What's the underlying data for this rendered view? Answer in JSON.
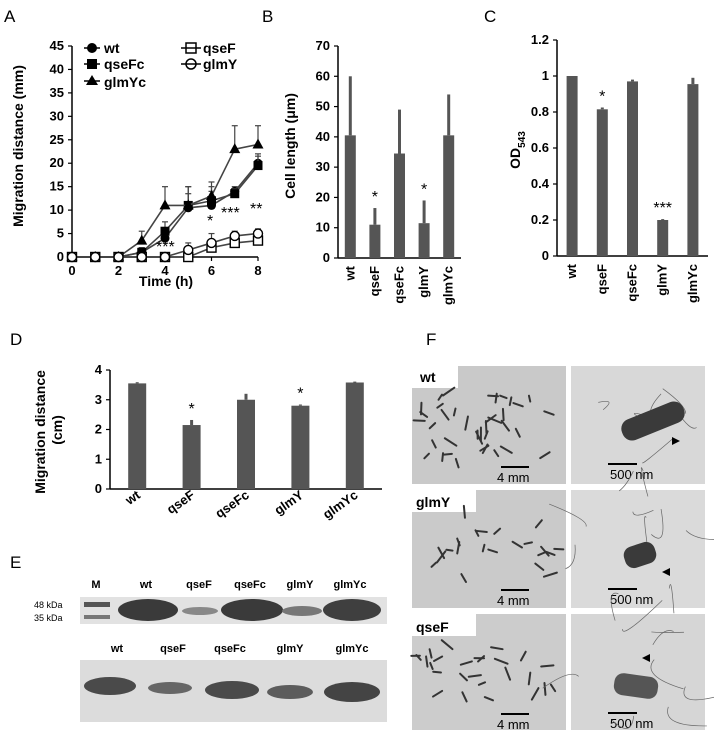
{
  "panel_labels": [
    "A",
    "B",
    "C",
    "D",
    "E",
    "F"
  ],
  "chart_data": [
    {
      "panel": "A",
      "type": "line",
      "xlabel": "Time (h)",
      "ylabel": "Migration distance (mm)",
      "xlim": [
        0,
        8
      ],
      "ylim": [
        0,
        45
      ],
      "xticks": [
        "0",
        "2",
        "4",
        "6",
        "8"
      ],
      "yticks": [
        "0",
        "5",
        "10",
        "15",
        "20",
        "25",
        "30",
        "35",
        "40",
        "45"
      ],
      "x": [
        0,
        1,
        2,
        3,
        4,
        5,
        6,
        7,
        8
      ],
      "series": [
        {
          "name": "wt",
          "marker": "filled-circle",
          "values": [
            0,
            0,
            0,
            1,
            4,
            10.5,
            11,
            14,
            20
          ],
          "err": [
            0,
            0,
            0,
            1,
            2,
            3,
            3,
            1,
            2
          ]
        },
        {
          "name": "qseFc",
          "marker": "filled-square",
          "values": [
            0,
            0,
            0,
            1,
            5.5,
            11,
            12,
            13.5,
            19.5
          ],
          "err": [
            0,
            0,
            0,
            1,
            2,
            4,
            3,
            1,
            2
          ]
        },
        {
          "name": "glmYc",
          "marker": "filled-triangle",
          "values": [
            0,
            0,
            0,
            3.5,
            11,
            11,
            13,
            23,
            24
          ],
          "err": [
            0,
            0,
            0,
            2,
            4,
            4,
            3,
            5,
            4
          ]
        },
        {
          "name": "qseF",
          "marker": "open-square",
          "values": [
            0,
            0,
            0,
            0,
            0,
            0,
            2,
            3,
            3.5
          ],
          "err": [
            0,
            0,
            0,
            0,
            0,
            0,
            1,
            1,
            1
          ]
        },
        {
          "name": "glmY",
          "marker": "open-circle",
          "values": [
            0,
            0,
            0,
            0,
            0,
            1.5,
            3,
            4.5,
            5
          ],
          "err": [
            0,
            0,
            0,
            0,
            0,
            1.5,
            2,
            1,
            1
          ]
        }
      ],
      "annotations": [
        "***",
        "*",
        "***",
        "**"
      ]
    },
    {
      "panel": "B",
      "type": "bar",
      "ylabel": "Cell length (μm)",
      "ylim": [
        0,
        70
      ],
      "yticks": [
        "0",
        "10",
        "20",
        "30",
        "40",
        "50",
        "60",
        "70"
      ],
      "categories": [
        "wt",
        "qseF",
        "qseFc",
        "glmY",
        "glmYc"
      ],
      "values": [
        40.5,
        11,
        34.5,
        11.5,
        40.5
      ],
      "err": [
        19.5,
        5.5,
        14.5,
        7.5,
        13.5
      ],
      "annotations": [
        "",
        "*",
        "",
        "*",
        ""
      ]
    },
    {
      "panel": "C",
      "type": "bar",
      "ylabel_main": "OD",
      "ylabel_sub": "543",
      "ylim": [
        0,
        1.2
      ],
      "yticks": [
        "0",
        "0.2",
        "0.4",
        "0.6",
        "0.8",
        "1",
        "1.2"
      ],
      "categories": [
        "wt",
        "qseF",
        "qseFc",
        "glmY",
        "glmYc"
      ],
      "values": [
        1.0,
        0.815,
        0.97,
        0.2,
        0.955
      ],
      "err": [
        0,
        0.01,
        0.01,
        0.005,
        0.035
      ],
      "annotations": [
        "",
        "*",
        "",
        "***",
        ""
      ]
    },
    {
      "panel": "D",
      "type": "bar",
      "ylabel": "Migration distance (cm)",
      "ylim": [
        0,
        4
      ],
      "yticks": [
        "0",
        "1",
        "2",
        "3",
        "4"
      ],
      "categories": [
        "wt",
        "qseF",
        "qseFc",
        "glmY",
        "glmYc"
      ],
      "values": [
        3.55,
        2.15,
        3.0,
        2.8,
        3.58
      ],
      "err": [
        0.04,
        0.17,
        0.2,
        0.04,
        0.03
      ],
      "annotations": [
        "",
        "*",
        "",
        "*",
        ""
      ]
    }
  ],
  "panel_e": {
    "top_lanes": [
      "M",
      "wt",
      "qseF",
      "qseFc",
      "glmY",
      "glmYc"
    ],
    "markers": [
      "48 kDa",
      "35 kDa"
    ],
    "bottom_lanes": [
      "wt",
      "qseF",
      "qseFc",
      "glmY",
      "glmYc"
    ]
  },
  "panel_f": {
    "rows": [
      {
        "label": "wt",
        "scale_left": "4 mm",
        "scale_right": "500 nm"
      },
      {
        "label": "glmY",
        "scale_left": "4 mm",
        "scale_right": "500 nm"
      },
      {
        "label": "qseF",
        "scale_left": "4 mm",
        "scale_right": "500 nm"
      }
    ]
  },
  "colors": {
    "bar": "#555555",
    "band": "#3a3a3a",
    "gel_bg": "#e2e2e2",
    "micro_bg": "#c8c8c8",
    "tem_bg": "#d9d9d9"
  }
}
